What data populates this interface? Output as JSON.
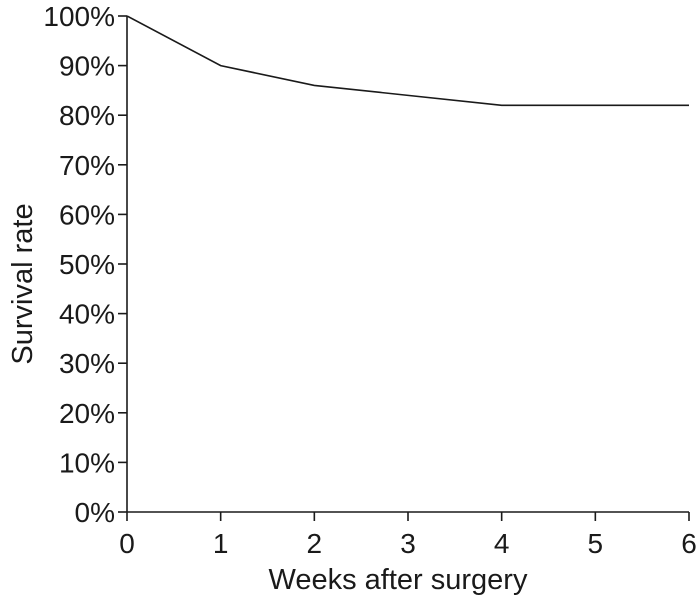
{
  "chart_data": {
    "type": "line",
    "title": "",
    "xlabel": "Weeks after surgery",
    "ylabel": "Survival rate",
    "xlim": [
      0,
      6
    ],
    "ylim": [
      0,
      100
    ],
    "x_ticks": [
      0,
      1,
      2,
      3,
      4,
      5,
      6
    ],
    "x_tick_labels": [
      "0",
      "1",
      "2",
      "3",
      "4",
      "5",
      "6"
    ],
    "y_ticks": [
      0,
      10,
      20,
      30,
      40,
      50,
      60,
      70,
      80,
      90,
      100
    ],
    "y_tick_labels": [
      "0%",
      "10%",
      "20%",
      "30%",
      "40%",
      "50%",
      "60%",
      "70%",
      "80%",
      "90%",
      "100%"
    ],
    "grid": false,
    "legend": "none",
    "series": [
      {
        "x": [
          0,
          1,
          2,
          3,
          4,
          5,
          6
        ],
        "values": [
          100,
          90,
          86,
          84,
          82,
          82,
          82
        ],
        "color": "#1a1a1a"
      }
    ]
  }
}
